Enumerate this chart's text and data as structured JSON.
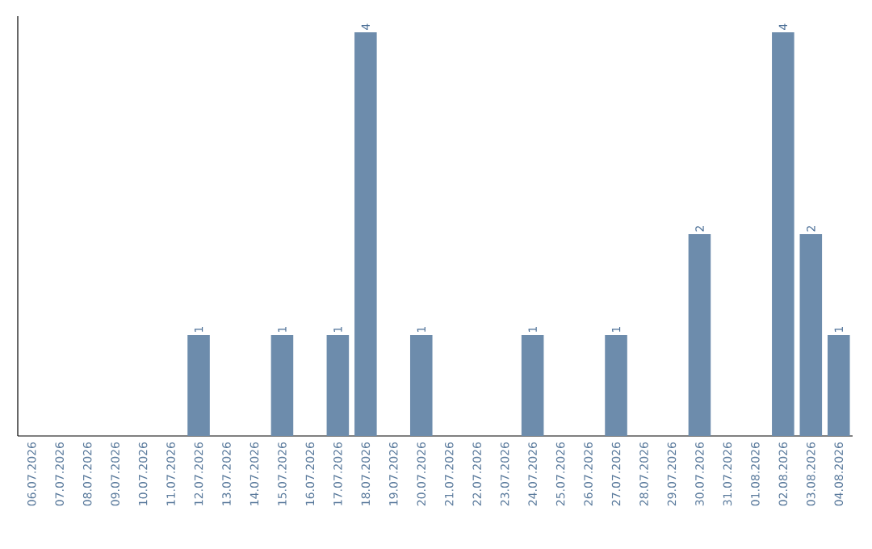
{
  "chart_data": {
    "type": "bar",
    "categories": [
      "06.07.2026",
      "07.07.2026",
      "08.07.2026",
      "09.07.2026",
      "10.07.2026",
      "11.07.2026",
      "12.07.2026",
      "13.07.2026",
      "14.07.2026",
      "15.07.2026",
      "16.07.2026",
      "17.07.2026",
      "18.07.2026",
      "19.07.2026",
      "20.07.2026",
      "21.07.2026",
      "22.07.2026",
      "23.07.2026",
      "24.07.2026",
      "25.07.2026",
      "26.07.2026",
      "27.07.2026",
      "28.07.2026",
      "29.07.2026",
      "30.07.2026",
      "31.07.2026",
      "01.08.2026",
      "02.08.2026",
      "03.08.2026",
      "04.08.2026"
    ],
    "values": [
      0,
      0,
      0,
      0,
      0,
      0,
      1,
      0,
      0,
      1,
      0,
      1,
      4,
      0,
      1,
      0,
      0,
      0,
      1,
      0,
      0,
      1,
      0,
      0,
      2,
      0,
      0,
      4,
      2,
      1
    ],
    "value_labels": [
      null,
      null,
      null,
      null,
      null,
      null,
      "1",
      null,
      null,
      "1",
      null,
      "1",
      "4",
      null,
      "1",
      null,
      null,
      null,
      "1",
      null,
      null,
      "1",
      null,
      null,
      "2",
      null,
      null,
      "4",
      "2",
      "1"
    ],
    "color": "#6d8cac"
  }
}
